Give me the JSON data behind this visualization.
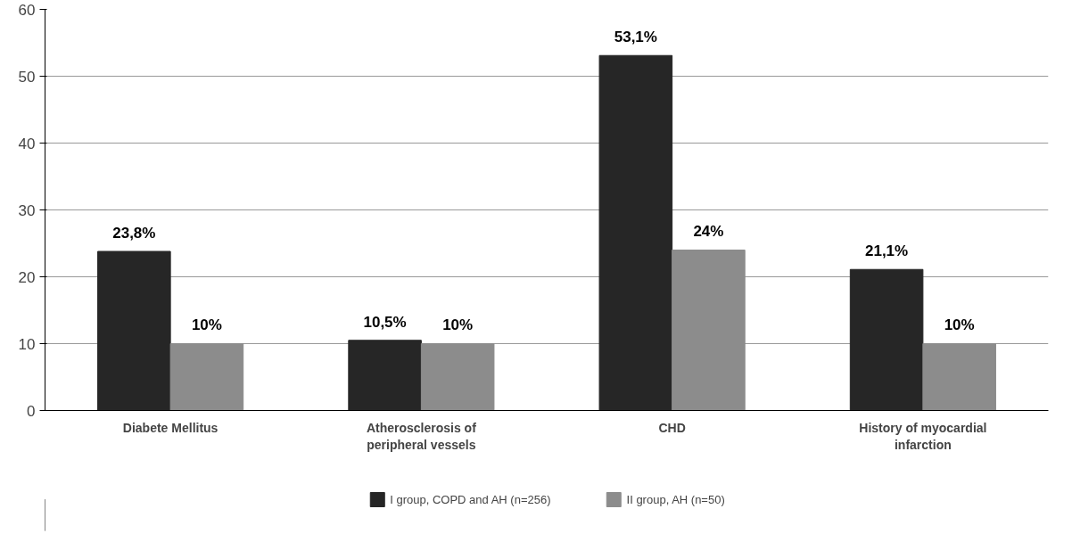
{
  "chart_data": {
    "type": "bar",
    "categories": [
      "Diabete Mellitus",
      "Atherosclerosis of peripheral vessels",
      "CHD",
      "History of myocardial infarction"
    ],
    "series": [
      {
        "name": "I group, COPD and AH (n=256)",
        "color": "#262626",
        "values": [
          23.8,
          10.5,
          53.1,
          21.1
        ],
        "value_labels": [
          "23,8%",
          "10,5%",
          "53,1%",
          "21,1%"
        ]
      },
      {
        "name": "II group, AH (n=50)",
        "color": "#8c8c8c",
        "values": [
          10,
          10,
          24,
          10
        ],
        "value_labels": [
          "10%",
          "10%",
          "24%",
          "10%"
        ]
      }
    ],
    "ylim": [
      0,
      60
    ],
    "yticks": [
      0,
      10,
      20,
      30,
      40,
      50,
      60
    ],
    "grid": "y",
    "legend": "bottom"
  }
}
